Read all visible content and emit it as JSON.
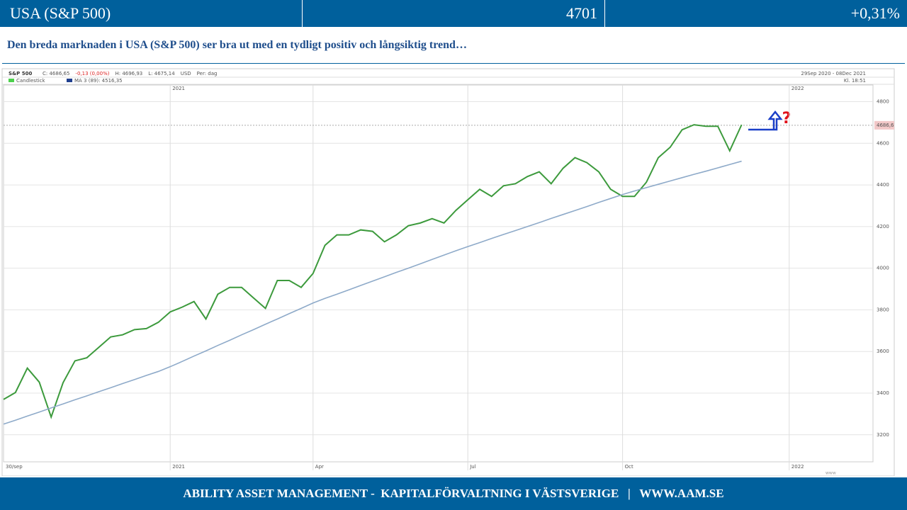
{
  "header": {
    "title": "USA (S&P 500)",
    "value": "4701",
    "change": "+0,31%"
  },
  "subtitle": "Den breda marknaden i USA (S&P 500) ser bra ut med en tydligt positiv och långsiktig trend…",
  "footer": "ABILITY ASSET MANAGEMENT -  KAPITALFÖRVALTNING I VÄSTSVERIGE   |   WWW.AAM.SE",
  "chart_data": {
    "type": "line",
    "title": "S&P 500",
    "info": [
      "C: 4686,65",
      "-0,13 (0,00%)",
      "H: 4696,93",
      "L: 4675,14",
      "USD",
      "Per: dag"
    ],
    "period": "29Sep 2020 - 08Dec 2021",
    "time": "Kl. 18:51",
    "annotation": "?",
    "last_price": {
      "value": 4686.6,
      "label": "4686,6"
    },
    "categories": [
      "30/sep",
      null,
      null,
      null,
      null,
      null,
      null,
      null,
      null,
      null,
      null,
      null,
      null,
      null,
      "2021",
      null,
      null,
      null,
      null,
      null,
      null,
      null,
      null,
      null,
      null,
      null,
      "Apr",
      null,
      null,
      null,
      null,
      null,
      null,
      null,
      null,
      null,
      null,
      null,
      null,
      "Jul",
      null,
      null,
      null,
      null,
      null,
      null,
      null,
      null,
      null,
      null,
      null,
      null,
      "Oct",
      null,
      null,
      null,
      null,
      null,
      null,
      null,
      null,
      null,
      null,
      null,
      null,
      null,
      "2022",
      null,
      null,
      null,
      null,
      null,
      null
    ],
    "series": [
      {
        "name": "Candlestick",
        "color": "#3c9a3c",
        "values": [
          3370,
          3403,
          3520,
          3453,
          3285,
          3450,
          3555,
          3570,
          3620,
          3670,
          3680,
          3705,
          3710,
          3740,
          3790,
          3813,
          3840,
          3756,
          3875,
          3908,
          3908,
          3857,
          3807,
          3941,
          3941,
          3908,
          3975,
          4110,
          4160,
          4160,
          4184,
          4177,
          4127,
          4160,
          4204,
          4217,
          4238,
          4217,
          4278,
          4329,
          4379,
          4345,
          4396,
          4406,
          4440,
          4463,
          4406,
          4480,
          4531,
          4507,
          4463,
          4379,
          4345,
          4345,
          4413,
          4531,
          4581,
          4665,
          4689,
          4682,
          4682,
          4564,
          4689,
          null,
          null,
          null,
          null,
          null,
          null,
          null,
          null,
          null,
          null
        ]
      },
      {
        "name": "MA 3 (89): 4516,35",
        "color": "#8eaac9",
        "values": [
          3251,
          3270,
          3290,
          3309,
          3329,
          3348,
          3368,
          3387,
          3407,
          3426,
          3446,
          3465,
          3485,
          3504,
          3527,
          3552,
          3578,
          3603,
          3629,
          3654,
          3680,
          3705,
          3731,
          3756,
          3782,
          3807,
          3833,
          3855,
          3875,
          3896,
          3917,
          3938,
          3959,
          3980,
          4000,
          4021,
          4042,
          4063,
          4084,
          4104,
          4123,
          4143,
          4162,
          4181,
          4200,
          4219,
          4239,
          4258,
          4277,
          4296,
          4316,
          4335,
          4354,
          4371,
          4387,
          4403,
          4419,
          4435,
          4451,
          4466,
          4482,
          4498,
          4514,
          null,
          null,
          null,
          null,
          null,
          null,
          null,
          null,
          null,
          null
        ]
      }
    ],
    "ylim": [
      3070,
      4880
    ],
    "yticks": [
      3200,
      3400,
      3600,
      3800,
      4000,
      4200,
      4400,
      4600,
      4800
    ],
    "grid": true
  }
}
